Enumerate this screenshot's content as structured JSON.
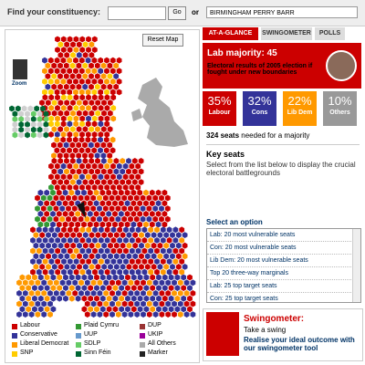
{
  "search": {
    "label": "Find your constituency:",
    "button": "Go",
    "or": "or",
    "selected": "BIRMINGHAM PERRY BARR"
  },
  "map": {
    "reset": "Reset Map",
    "zoom": "Zoom"
  },
  "legend": [
    "Labour",
    "Conservative",
    "Liberal Democrat",
    "SNP",
    "Plaid Cymru",
    "UUP",
    "SDLP",
    "Sinn Féin",
    "DUP",
    "UKIP",
    "All Others",
    "Marker"
  ],
  "tabs": [
    "AT-A-GLANCE",
    "SWINGOMETER",
    "POLLS"
  ],
  "result": {
    "headline_label": "Lab majority:",
    "headline_value": "45",
    "note": "Electoral results of 2005 election if fought under new boundaries"
  },
  "shares": [
    {
      "value": "35%",
      "party": "Labour"
    },
    {
      "value": "32%",
      "party": "Cons"
    },
    {
      "value": "22%",
      "party": "Lib Dem"
    },
    {
      "value": "10%",
      "party": "Others"
    }
  ],
  "majority": {
    "value": "324 seats",
    "text": "needed for a majority"
  },
  "key_seats": {
    "title": "Key seats",
    "description": "Select from the list below to display the crucial electoral battlegrounds"
  },
  "options": {
    "title": "Select an option",
    "items": [
      "Lab:  20 most vulnerable seats",
      "Con:  20 most vulnerable seats",
      "Lib Dem: 20 most vulnerable seats",
      "Top 20 three-way marginals",
      "Lab: 25 top target seats",
      "Con: 25 top target seats"
    ]
  },
  "promo": {
    "title": "Swingometer:",
    "subtitle": "Take a swing",
    "text": "Realise your ideal outcome with our swingometer tool"
  }
}
